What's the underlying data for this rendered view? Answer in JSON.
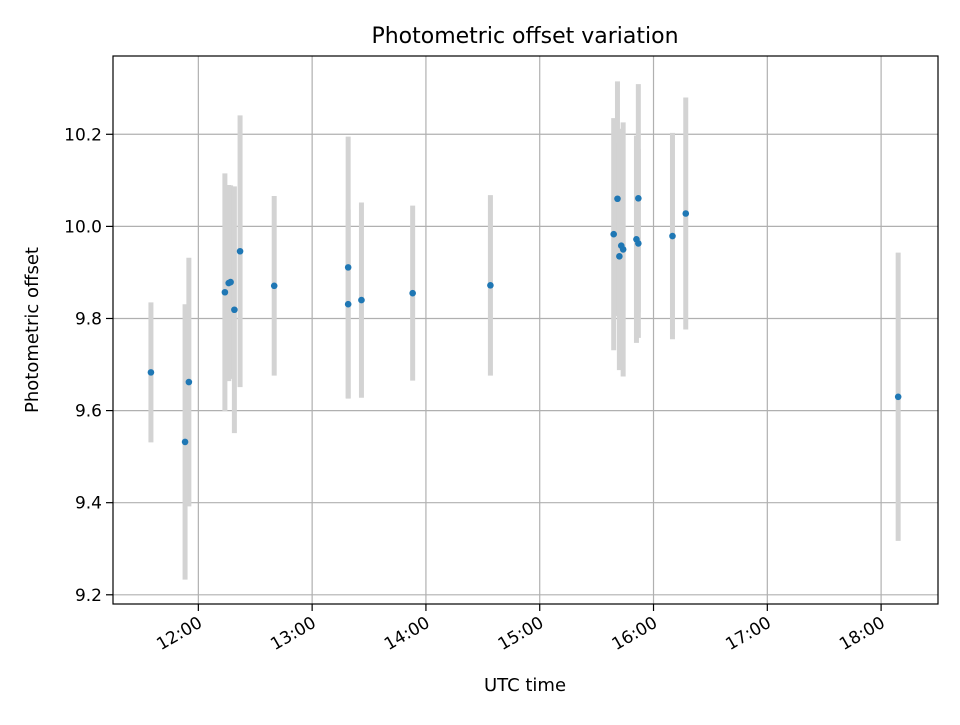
{
  "chart_data": {
    "type": "scatter",
    "title": "Photometric offset variation",
    "xlabel": "UTC time",
    "ylabel": "Photometric offset",
    "xlim": [
      "11:15",
      "18:30"
    ],
    "ylim": [
      9.18,
      10.37
    ],
    "grid": true,
    "x_ticks": [
      "12:00",
      "13:00",
      "14:00",
      "15:00",
      "16:00",
      "17:00",
      "18:00"
    ],
    "y_ticks": [
      9.2,
      9.4,
      9.6,
      9.8,
      10.0,
      10.2
    ],
    "y_tick_labels": [
      "9.2",
      "9.4",
      "9.6",
      "9.8",
      "10.0",
      "10.2"
    ],
    "colors": {
      "marker": "#1f77b4",
      "errorbar": "#d3d3d3",
      "grid": "#b0b0b0"
    },
    "series": [
      {
        "points": [
          {
            "x": "11:35",
            "y": 9.683,
            "err": 0.152
          },
          {
            "x": "11:53",
            "y": 9.532,
            "err": 0.299
          },
          {
            "x": "11:55",
            "y": 9.662,
            "err": 0.27
          },
          {
            "x": "12:14",
            "y": 9.857,
            "err": 0.258
          },
          {
            "x": "12:16",
            "y": 9.877,
            "err": 0.213
          },
          {
            "x": "12:17",
            "y": 9.879,
            "err": 0.21
          },
          {
            "x": "12:19",
            "y": 9.819,
            "err": 0.268
          },
          {
            "x": "12:22",
            "y": 9.946,
            "err": 0.295
          },
          {
            "x": "12:40",
            "y": 9.871,
            "err": 0.195
          },
          {
            "x": "13:19",
            "y": 9.911,
            "err": 0.284
          },
          {
            "x": "13:19",
            "y": 9.831,
            "err": 0.205
          },
          {
            "x": "13:26",
            "y": 9.84,
            "err": 0.212
          },
          {
            "x": "13:53",
            "y": 9.855,
            "err": 0.19
          },
          {
            "x": "14:34",
            "y": 9.872,
            "err": 0.196
          },
          {
            "x": "15:39",
            "y": 9.983,
            "err": 0.252
          },
          {
            "x": "15:41",
            "y": 10.06,
            "err": 0.255
          },
          {
            "x": "15:42",
            "y": 9.935,
            "err": 0.247
          },
          {
            "x": "15:43",
            "y": 9.958,
            "err": 0.254
          },
          {
            "x": "15:44",
            "y": 9.95,
            "err": 0.276
          },
          {
            "x": "15:51",
            "y": 9.972,
            "err": 0.225
          },
          {
            "x": "15:52",
            "y": 10.061,
            "err": 0.248
          },
          {
            "x": "15:52",
            "y": 9.963,
            "err": 0.205
          },
          {
            "x": "16:10",
            "y": 9.979,
            "err": 0.224
          },
          {
            "x": "16:17",
            "y": 10.028,
            "err": 0.252
          },
          {
            "x": "18:09",
            "y": 9.63,
            "err": 0.313
          }
        ]
      }
    ]
  }
}
